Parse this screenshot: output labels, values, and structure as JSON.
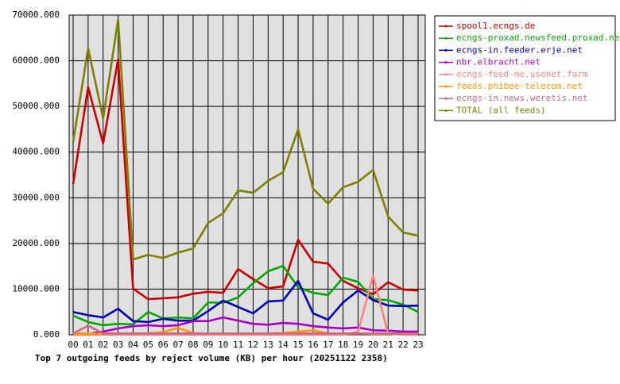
{
  "chart_data": {
    "type": "line",
    "title": "Top 7 outgoing feeds by reject volume (KB) per hour (20251122 2358)",
    "categories": [
      "00",
      "01",
      "02",
      "03",
      "04",
      "05",
      "06",
      "07",
      "08",
      "09",
      "10",
      "11",
      "12",
      "13",
      "14",
      "15",
      "16",
      "17",
      "18",
      "19",
      "20",
      "21",
      "22",
      "23"
    ],
    "ylim": [
      0,
      70000
    ],
    "yticks": [
      {
        "value": 0,
        "label": "0.000"
      },
      {
        "value": 10000,
        "label": "10000.000"
      },
      {
        "value": 20000,
        "label": "20000.000"
      },
      {
        "value": 30000,
        "label": "30000.000"
      },
      {
        "value": 40000,
        "label": "40000.000"
      },
      {
        "value": 50000,
        "label": "50000.000"
      },
      {
        "value": 60000,
        "label": "60000.000"
      },
      {
        "value": 70000,
        "label": "70000.000"
      }
    ],
    "grid": true,
    "legend": "right",
    "series": [
      {
        "name": "spool1.ecngs.de",
        "color": "#cc0000",
        "values": [
          33000,
          54200,
          41900,
          60300,
          10100,
          7800,
          8000,
          8200,
          9000,
          9400,
          9200,
          14400,
          12200,
          10200,
          10600,
          20800,
          16000,
          15600,
          11800,
          10200,
          8900,
          11500,
          9900,
          9700
        ]
      },
      {
        "name": "ecngs-proxad.newsfeed.proxad.net",
        "color": "#00aa00",
        "values": [
          4200,
          2800,
          2100,
          2400,
          2300,
          5000,
          3600,
          3800,
          3600,
          7100,
          7000,
          8200,
          11300,
          13900,
          15100,
          10400,
          9200,
          8700,
          12500,
          11600,
          7800,
          7600,
          6600,
          5000
        ]
      },
      {
        "name": "ecngs-in.feeder.erje.net",
        "color": "#0000bb",
        "values": [
          5000,
          4300,
          3800,
          5700,
          3000,
          2800,
          3500,
          3100,
          3100,
          5200,
          7500,
          6100,
          4700,
          7300,
          7500,
          11800,
          4700,
          3300,
          7100,
          9700,
          7600,
          6400,
          6300,
          6400
        ]
      },
      {
        "name": "nbr.elbracht.net",
        "color": "#aa00cc",
        "values": [
          300,
          200,
          700,
          1400,
          1900,
          2100,
          1900,
          2100,
          3000,
          3000,
          3800,
          3100,
          2400,
          2200,
          2600,
          2400,
          1900,
          1600,
          1400,
          1600,
          1000,
          900,
          700,
          700
        ]
      },
      {
        "name": "ecngs-feed-me.usenet.farm",
        "color": "#ff8080",
        "values": [
          0,
          0,
          0,
          0,
          0,
          0,
          0,
          0,
          0,
          0,
          0,
          0,
          0,
          0,
          0,
          0,
          0,
          0,
          0,
          700,
          13000,
          300,
          0,
          0
        ]
      },
      {
        "name": "feeds.phibee-telecom.net",
        "color": "#ff9900",
        "values": [
          200,
          300,
          200,
          300,
          200,
          300,
          600,
          1500,
          400,
          200,
          300,
          200,
          200,
          300,
          400,
          700,
          1000,
          300,
          200,
          300,
          200,
          200,
          200,
          200
        ]
      },
      {
        "name": "ecngs-in.news.weretis.net",
        "color": "#cc6688",
        "values": [
          300,
          2000,
          300,
          300,
          300,
          300,
          300,
          300,
          300,
          300,
          300,
          300,
          300,
          300,
          300,
          300,
          300,
          300,
          300,
          300,
          300,
          300,
          300,
          300
        ]
      },
      {
        "name": "TOTAL (all feeds)",
        "color": "#808000",
        "values": [
          42200,
          62700,
          47400,
          69000,
          16500,
          17500,
          16800,
          18000,
          18900,
          24500,
          26600,
          31600,
          31100,
          33700,
          35600,
          45000,
          32000,
          28700,
          32300,
          33500,
          36100,
          25900,
          22400,
          21700
        ]
      }
    ]
  }
}
